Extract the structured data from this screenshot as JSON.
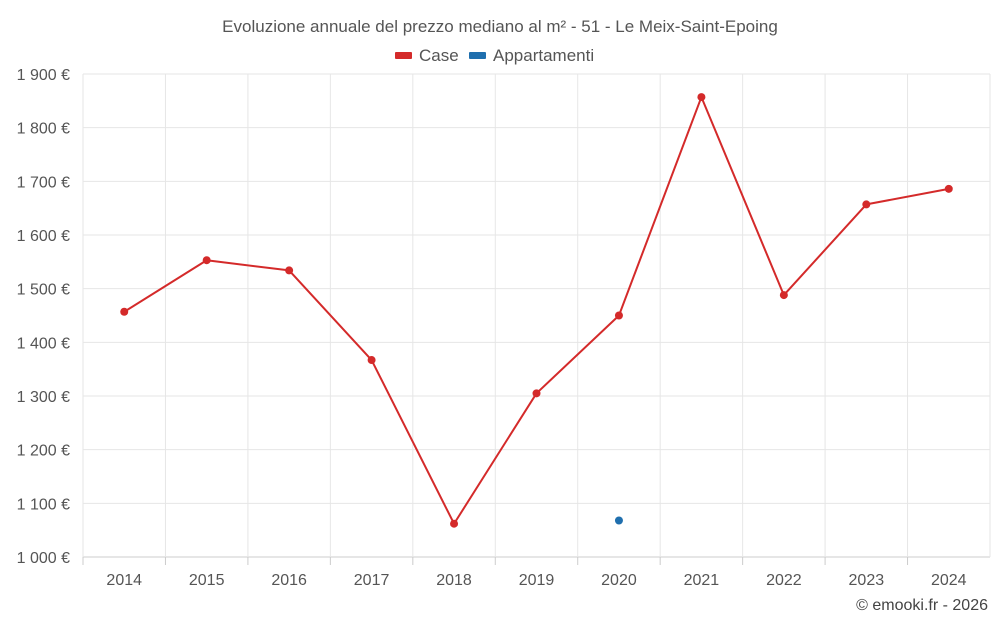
{
  "chart_data": {
    "type": "line",
    "title": "Evoluzione annuale del prezzo mediano al m² - 51 - Le Meix-Saint-Epoing",
    "categories": [
      "2014",
      "2015",
      "2016",
      "2017",
      "2018",
      "2019",
      "2020",
      "2021",
      "2022",
      "2023",
      "2024"
    ],
    "series": [
      {
        "name": "Case",
        "color": "#d42a2a",
        "values": [
          1457,
          1553,
          1534,
          1367,
          1062,
          1305,
          1450,
          1857,
          1488,
          1657,
          1686
        ]
      },
      {
        "name": "Appartamenti",
        "color": "#1f6fae",
        "values": [
          null,
          null,
          null,
          null,
          null,
          null,
          1068,
          null,
          null,
          null,
          null
        ]
      }
    ],
    "ylim": [
      1000,
      1900
    ],
    "y_ticks": [
      1000,
      1100,
      1200,
      1300,
      1400,
      1500,
      1600,
      1700,
      1800,
      1900
    ],
    "y_tick_labels": [
      "1 000 €",
      "1 100 €",
      "1 200 €",
      "1 300 €",
      "1 400 €",
      "1 500 €",
      "1 600 €",
      "1 700 €",
      "1 800 €",
      "1 900 €"
    ],
    "xlabel": "",
    "ylabel": "",
    "grid": true,
    "legend": "top-center"
  },
  "credit": "© emooki.fr - 2026"
}
